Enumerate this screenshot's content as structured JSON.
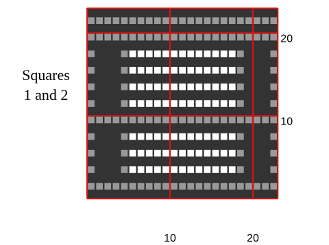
{
  "side_label": [
    "Squares",
    "1 and 2"
  ],
  "grid": {
    "columns": 23,
    "rows": 23,
    "colors": {
      "dark": "#333333",
      "light": "#999999",
      "white": "#ffffff",
      "line": "#dd1111"
    },
    "row_types": [
      "A",
      "B",
      "A",
      "B",
      "A",
      "C",
      "A",
      "C",
      "A",
      "C",
      "A",
      "C",
      "A",
      "B",
      "A",
      "C",
      "A",
      "C",
      "A",
      "C",
      "A",
      "B",
      "A"
    ],
    "white_columns": [
      6,
      18
    ],
    "light_columns": [
      1,
      5,
      19,
      23
    ]
  },
  "x_ticks": [
    {
      "value": 10,
      "label": "10"
    },
    {
      "value": 20,
      "label": "20"
    }
  ],
  "y_ticks": [
    {
      "value": 10,
      "label": "10"
    },
    {
      "value": 20,
      "label": "20"
    }
  ],
  "red_lines": {
    "vertical": [
      0,
      10,
      20,
      23
    ],
    "horizontal": [
      0,
      10,
      20,
      23
    ]
  }
}
